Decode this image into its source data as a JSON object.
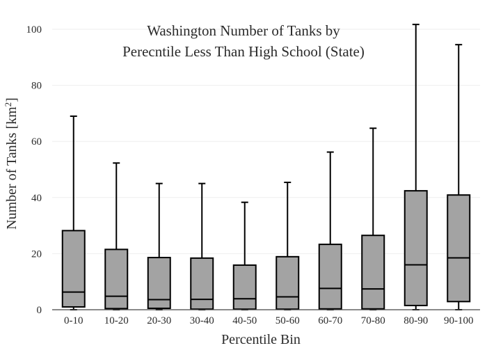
{
  "chart_data": {
    "type": "box",
    "title_lines": [
      "Washington Number of Tanks by",
      "Perecntile Less Than High School (State)"
    ],
    "xlabel": "Percentile Bin",
    "ylabel_prefix": "Number of Tanks  [km",
    "ylabel_sup": "2",
    "ylabel_suffix": "]",
    "ylim": [
      0,
      100
    ],
    "yticks": [
      0,
      20,
      40,
      60,
      80,
      100
    ],
    "grid": true,
    "categories": [
      "0-10",
      "10-20",
      "20-30",
      "30-40",
      "40-50",
      "50-60",
      "60-70",
      "70-80",
      "80-90",
      "90-100"
    ],
    "boxes": [
      {
        "low": 0,
        "q1": 1,
        "median": 6.3,
        "q3": 28.2,
        "high": 69
      },
      {
        "low": 0,
        "q1": 0.4,
        "median": 4.8,
        "q3": 21.5,
        "high": 52.3
      },
      {
        "low": 0,
        "q1": 0.5,
        "median": 3.6,
        "q3": 18.6,
        "high": 45
      },
      {
        "low": 0,
        "q1": 0.2,
        "median": 3.7,
        "q3": 18.4,
        "high": 45
      },
      {
        "low": 0,
        "q1": 0.2,
        "median": 3.9,
        "q3": 15.9,
        "high": 38.3
      },
      {
        "low": 0,
        "q1": 0.2,
        "median": 4.6,
        "q3": 18.9,
        "high": 45.4
      },
      {
        "low": 0,
        "q1": 0.3,
        "median": 7.6,
        "q3": 23.3,
        "high": 56.2
      },
      {
        "low": 0,
        "q1": 0.3,
        "median": 7.4,
        "q3": 26.5,
        "high": 64.7
      },
      {
        "low": 0,
        "q1": 1.5,
        "median": 16,
        "q3": 42.4,
        "high": 101.7
      },
      {
        "low": 0,
        "q1": 2.9,
        "median": 18.5,
        "q3": 40.9,
        "high": 94.5
      }
    ],
    "box_fill": "#a3a3a3",
    "line_color": "#000000",
    "grid_color": "#eeeeee"
  }
}
